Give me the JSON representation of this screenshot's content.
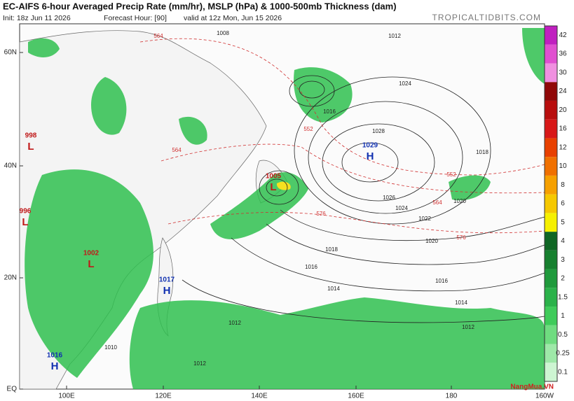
{
  "header": {
    "title": "EC-AIFS 6-hour Averaged Precip Rate (mm/hr), MSLP (hPa) & 1000-500mb Thickness (dam)",
    "init": "Init: 18z Jun 11 2026",
    "forecast_hour": "Forecast Hour: [90]",
    "valid": "valid at 12z Mon, Jun 15 2026",
    "site": "TROPICALTIDBITS.COM"
  },
  "map": {
    "lat_labels": [
      "60N",
      "40N",
      "20N",
      "EQ"
    ],
    "lon_labels": [
      "100E",
      "120E",
      "140E",
      "160E",
      "180",
      "160W"
    ],
    "pressure_centers": [
      {
        "type": "H",
        "value": "1029"
      },
      {
        "type": "L",
        "value": "1005"
      },
      {
        "type": "H",
        "value": "1017"
      },
      {
        "type": "L",
        "value": "1002"
      },
      {
        "type": "H",
        "value": "1016"
      },
      {
        "type": "L",
        "value": "998"
      },
      {
        "type": "L",
        "value": "996"
      }
    ],
    "isobar_labels": [
      "1028",
      "1026",
      "1024",
      "1022",
      "1020",
      "1018",
      "1016",
      "1014",
      "1012",
      "1012",
      "1016",
      "1014",
      "1010",
      "1012",
      "1008",
      "1012",
      "1016",
      "1024",
      "1018",
      "1020"
    ],
    "thickness_labels": [
      "564",
      "552",
      "576",
      "564",
      "576",
      "552",
      "564"
    ]
  },
  "colorbar": {
    "levels": [
      "0.1",
      "0.25",
      "0.5",
      "1",
      "1.5",
      "2",
      "3",
      "4",
      "5",
      "6",
      "8",
      "10",
      "12",
      "16",
      "20",
      "24",
      "30",
      "36",
      "42"
    ],
    "colors": [
      "#cdf5d2",
      "#9ee8a8",
      "#6fdc80",
      "#3fcb5a",
      "#2bb24a",
      "#1f9a3c",
      "#17802f",
      "#0f6624",
      "#f6f000",
      "#f6c800",
      "#f6a000",
      "#f07000",
      "#e84000",
      "#d81818",
      "#b80e0e",
      "#900808",
      "#f090e0",
      "#e050d0",
      "#c020c0"
    ]
  },
  "watermark": "NangMua.VN"
}
